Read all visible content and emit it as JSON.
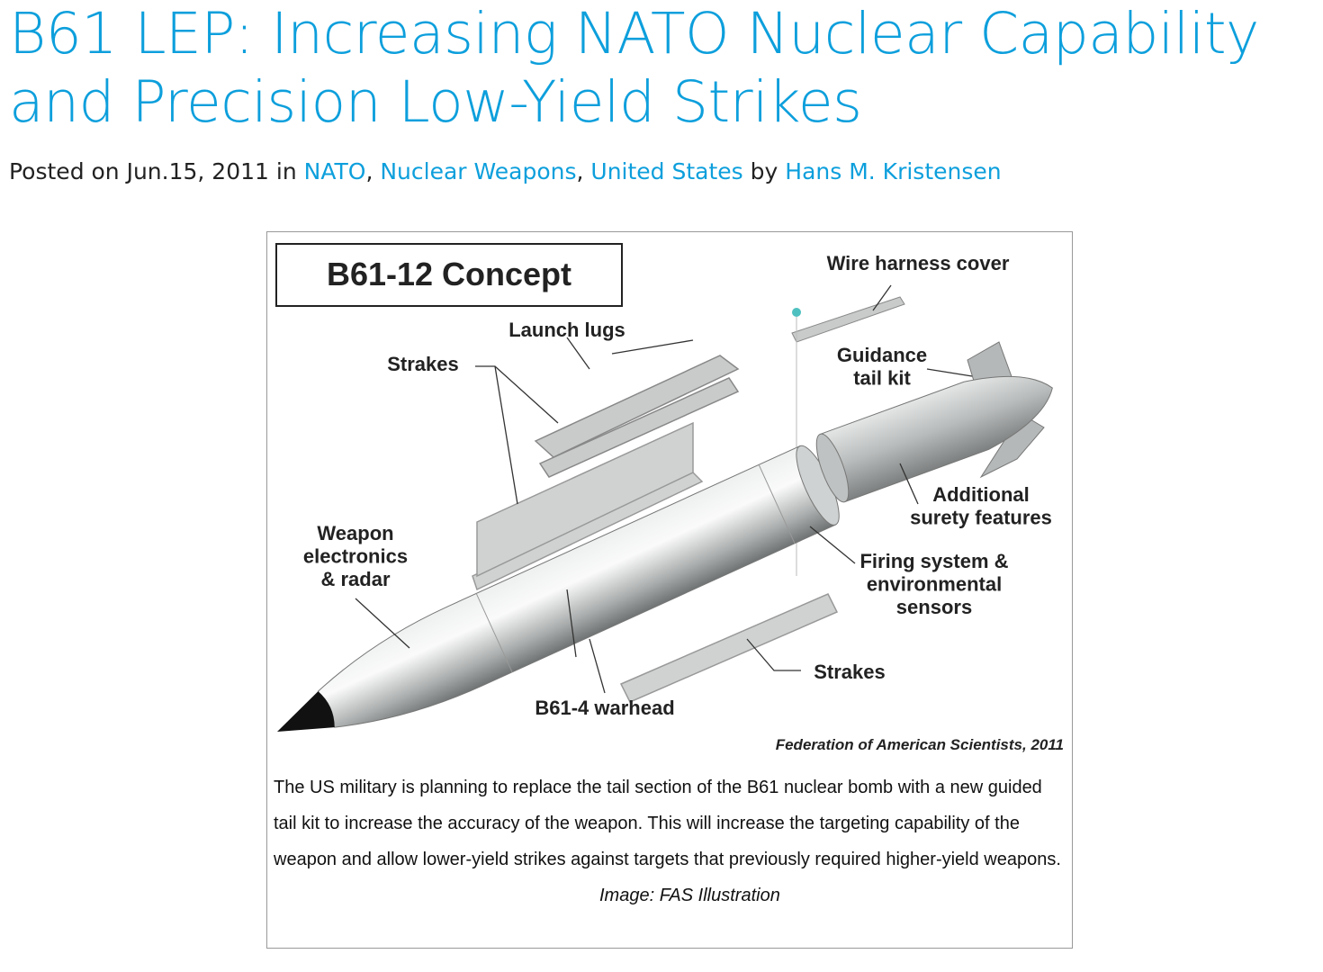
{
  "post": {
    "title": "B61 LEP: Increasing NATO Nuclear Capability and Precision Low-Yield Strikes",
    "meta": {
      "prefix": "Posted on Jun.15, 2011 in",
      "categories": [
        "NATO",
        "Nuclear Weapons",
        "United States"
      ],
      "separator": ",",
      "by": "by",
      "author": "Hans M. Kristensen"
    }
  },
  "figure": {
    "heading": "B61-12 Concept",
    "labels": [
      {
        "lines": [
          "Wire harness cover"
        ]
      },
      {
        "lines": [
          "Launch lugs"
        ]
      },
      {
        "lines": [
          "Strakes"
        ]
      },
      {
        "lines": [
          "Guidance",
          "tail kit"
        ]
      },
      {
        "lines": [
          "Additional",
          "surety features"
        ]
      },
      {
        "lines": [
          "Weapon",
          "electronics",
          "& radar"
        ]
      },
      {
        "lines": [
          "Firing system &",
          "environmental",
          "sensors"
        ]
      },
      {
        "lines": [
          "Strakes"
        ]
      },
      {
        "lines": [
          "B61-4 warhead"
        ]
      }
    ],
    "credit": "Federation of American Scientists, 2011",
    "caption": "The US military is planning to replace the tail section of the B61 nuclear bomb with a new guided tail kit to increase the accuracy of the weapon. This will increase the targeting capability of the weapon and allow lower-yield strikes against targets that previously required higher-yield weapons.",
    "image_credit": "Image: FAS Illustration"
  }
}
